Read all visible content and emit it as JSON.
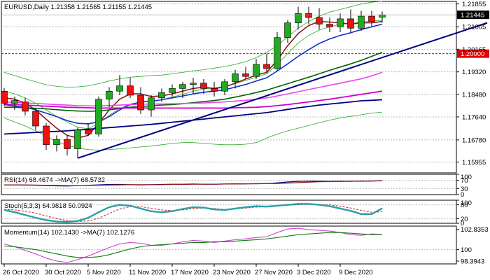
{
  "chart_data": {
    "type": "candlestick",
    "symbol_header": "EURUSD,Daily  1.21358 1.21565 1.21155 1.21445",
    "current_price_label": "1.21445",
    "reference_level": {
      "value": 1.2,
      "label": "1.20000",
      "color": "#dd0000"
    },
    "price_axis": {
      "ylim": [
        1.1555,
        1.2195
      ],
      "ticks": [
        "1.21855",
        "1.21005",
        "1.20165",
        "1.19320",
        "1.18480",
        "1.17640",
        "1.16780",
        "1.15955"
      ]
    },
    "x_labels": [
      {
        "label": "26 Oct 2020",
        "index": 0
      },
      {
        "label": "30 Oct 2020",
        "index": 4
      },
      {
        "label": "5 Nov 2020",
        "index": 8
      },
      {
        "label": "11 Nov 2020",
        "index": 12
      },
      {
        "label": "17 Nov 2020",
        "index": 16
      },
      {
        "label": "23 Nov 2020",
        "index": 20
      },
      {
        "label": "27 Nov 2020",
        "index": 24
      },
      {
        "label": "3 Dec 2020",
        "index": 28
      },
      {
        "label": "9 Dec 2020",
        "index": 32
      }
    ],
    "colors": {
      "up": "#22aa22",
      "down": "#ee1111"
    },
    "candles": [
      [
        1.186,
        1.1872,
        1.1805,
        1.1815
      ],
      [
        1.1815,
        1.184,
        1.179,
        1.1825
      ],
      [
        1.182,
        1.1835,
        1.177,
        1.1785
      ],
      [
        1.1785,
        1.1795,
        1.1715,
        1.173
      ],
      [
        1.173,
        1.174,
        1.164,
        1.166
      ],
      [
        1.166,
        1.1695,
        1.1635,
        1.168
      ],
      [
        1.168,
        1.1695,
        1.162,
        1.1645
      ],
      [
        1.1645,
        1.1725,
        1.161,
        1.1715
      ],
      [
        1.1715,
        1.174,
        1.1695,
        1.17
      ],
      [
        1.17,
        1.184,
        1.169,
        1.183
      ],
      [
        1.183,
        1.1875,
        1.18,
        1.186
      ],
      [
        1.186,
        1.192,
        1.1845,
        1.188
      ],
      [
        1.188,
        1.191,
        1.1835,
        1.1845
      ],
      [
        1.1845,
        1.1875,
        1.1775,
        1.179
      ],
      [
        1.179,
        1.1845,
        1.1765,
        1.1835
      ],
      [
        1.1835,
        1.187,
        1.182,
        1.1855
      ],
      [
        1.1855,
        1.1885,
        1.184,
        1.187
      ],
      [
        1.187,
        1.1895,
        1.1835,
        1.1885
      ],
      [
        1.1885,
        1.191,
        1.185,
        1.189
      ],
      [
        1.189,
        1.1905,
        1.185,
        1.187
      ],
      [
        1.187,
        1.1895,
        1.184,
        1.186
      ],
      [
        1.186,
        1.1905,
        1.1845,
        1.1895
      ],
      [
        1.1895,
        1.194,
        1.187,
        1.1925
      ],
      [
        1.1925,
        1.195,
        1.1905,
        1.1915
      ],
      [
        1.1915,
        1.198,
        1.1905,
        1.196
      ],
      [
        1.196,
        1.2,
        1.193,
        1.1945
      ],
      [
        1.1945,
        1.208,
        1.1935,
        1.206
      ],
      [
        1.206,
        1.2125,
        1.204,
        1.2115
      ],
      [
        1.2115,
        1.2175,
        1.209,
        1.215
      ],
      [
        1.215,
        1.2175,
        1.211,
        1.2135
      ],
      [
        1.2135,
        1.217,
        1.209,
        1.211
      ],
      [
        1.211,
        1.2135,
        1.208,
        1.21
      ],
      [
        1.21,
        1.215,
        1.208,
        1.213
      ],
      [
        1.213,
        1.2165,
        1.208,
        1.2095
      ],
      [
        1.2095,
        1.216,
        1.2085,
        1.214
      ],
      [
        1.214,
        1.216,
        1.21,
        1.212
      ],
      [
        1.2136,
        1.2157,
        1.2116,
        1.2145
      ]
    ],
    "overlays": [
      {
        "color": "#22aa22",
        "width": 0.8,
        "values": [
          1.193,
          1.1918,
          1.1906,
          1.1895,
          1.1884,
          1.1878,
          1.1875,
          1.1876,
          1.188,
          1.1888,
          1.1898,
          1.1906,
          1.1912,
          1.1915,
          1.1918,
          1.192,
          1.1925,
          1.193,
          1.1936,
          1.194,
          1.1946,
          1.1952,
          1.196,
          1.197,
          1.1985,
          1.2005,
          1.203,
          1.2062,
          1.2095,
          1.212,
          1.214,
          1.2155,
          1.2165,
          1.2175,
          1.2185,
          1.2192,
          1.2195
        ]
      },
      {
        "color": "#22aa22",
        "width": 0.8,
        "values": [
          1.176,
          1.1745,
          1.173,
          1.1712,
          1.1692,
          1.1672,
          1.1658,
          1.1648,
          1.1642,
          1.164,
          1.1642,
          1.1645,
          1.1648,
          1.1652,
          1.1655,
          1.166,
          1.1665,
          1.1668,
          1.1668,
          1.1665,
          1.1662,
          1.166,
          1.166,
          1.1662,
          1.1668,
          1.1685,
          1.17,
          1.1712,
          1.1722,
          1.1732,
          1.1742,
          1.1752,
          1.176,
          1.1766,
          1.1772,
          1.1778,
          1.1782
        ]
      },
      {
        "color": "#22aa22",
        "width": 0.8,
        "values": [
          1.186,
          1.185,
          1.1835,
          1.1815,
          1.179,
          1.1765,
          1.1745,
          1.1725,
          1.172,
          1.174,
          1.177,
          1.1795,
          1.1812,
          1.182,
          1.1822,
          1.1828,
          1.1838,
          1.1848,
          1.186,
          1.1868,
          1.1872,
          1.1878,
          1.1888,
          1.19,
          1.1912,
          1.1925,
          1.196,
          1.2,
          1.204,
          1.2068,
          1.2088,
          1.21,
          1.211,
          1.2112,
          1.2118,
          1.2122,
          1.2125
        ]
      },
      {
        "color": "#8b1a1a",
        "width": 1.6,
        "values": [
          1.1835,
          1.183,
          1.1815,
          1.179,
          1.1755,
          1.1722,
          1.1695,
          1.1685,
          1.1695,
          1.174,
          1.179,
          1.183,
          1.185,
          1.185,
          1.184,
          1.1842,
          1.185,
          1.186,
          1.187,
          1.1875,
          1.187,
          1.1875,
          1.189,
          1.1905,
          1.192,
          1.193,
          1.1975,
          1.203,
          1.2075,
          1.2105,
          1.212,
          1.2118,
          1.2115,
          1.211,
          1.2115,
          1.2115,
          1.212
        ]
      },
      {
        "color": "#1133cc",
        "width": 1.6,
        "values": [
          1.181,
          1.1805,
          1.18,
          1.179,
          1.1778,
          1.1765,
          1.175,
          1.174,
          1.1738,
          1.1745,
          1.1765,
          1.179,
          1.181,
          1.182,
          1.1822,
          1.1828,
          1.1835,
          1.1842,
          1.185,
          1.1856,
          1.186,
          1.1865,
          1.1875,
          1.1885,
          1.1898,
          1.191,
          1.1935,
          1.1962,
          1.199,
          1.2015,
          1.2038,
          1.2055,
          1.2068,
          1.2078,
          1.209,
          1.21,
          1.211
        ]
      },
      {
        "color": "#006600",
        "width": 1.6,
        "values": [
          1.18,
          1.18,
          1.1798,
          1.1796,
          1.1794,
          1.1791,
          1.1788,
          1.1786,
          1.1785,
          1.1786,
          1.179,
          1.1795,
          1.18,
          1.1803,
          1.1805,
          1.1808,
          1.181,
          1.1813,
          1.1817,
          1.1821,
          1.1825,
          1.183,
          1.1838,
          1.1846,
          1.1855,
          1.1864,
          1.1876,
          1.1888,
          1.19,
          1.1912,
          1.1925,
          1.1938,
          1.195,
          1.1962,
          1.1975,
          1.199,
          1.2005
        ]
      },
      {
        "color": "#ee44ee",
        "width": 1.6,
        "values": [
          1.182,
          1.1818,
          1.1816,
          1.1814,
          1.1812,
          1.181,
          1.1808,
          1.1806,
          1.1805,
          1.1805,
          1.1806,
          1.1808,
          1.181,
          1.1811,
          1.1812,
          1.1812,
          1.1813,
          1.1814,
          1.1815,
          1.1816,
          1.1818,
          1.182,
          1.1823,
          1.1826,
          1.183,
          1.1835,
          1.1842,
          1.185,
          1.1858,
          1.1866,
          1.1874,
          1.1882,
          1.189,
          1.1898,
          1.1906,
          1.1917,
          1.193
        ]
      },
      {
        "color": "#cc00cc",
        "width": 1.8,
        "values": [
          1.1812,
          1.181,
          1.1808,
          1.1806,
          1.1804,
          1.1802,
          1.18,
          1.1799,
          1.1798,
          1.1797,
          1.1797,
          1.1797,
          1.1797,
          1.1797,
          1.1797,
          1.1797,
          1.1797,
          1.1797,
          1.1797,
          1.1797,
          1.1797,
          1.1797,
          1.1798,
          1.1799,
          1.18,
          1.1802,
          1.1806,
          1.181,
          1.1815,
          1.182,
          1.1825,
          1.183,
          1.1836,
          1.1842,
          1.1848,
          1.1854,
          1.186
        ]
      },
      {
        "color": "#00007f",
        "width": 1.8,
        "values": [
          1.17,
          1.1702,
          1.1704,
          1.1706,
          1.1708,
          1.171,
          1.1712,
          1.1715,
          1.1718,
          1.1721,
          1.1724,
          1.1727,
          1.173,
          1.1733,
          1.1736,
          1.174,
          1.1744,
          1.1748,
          1.1752,
          1.1756,
          1.176,
          1.1764,
          1.1768,
          1.1772,
          1.1776,
          1.178,
          1.1786,
          1.1792,
          1.1798,
          1.1803,
          1.1808,
          1.1812,
          1.1816,
          1.182,
          1.1824,
          1.1826,
          1.1828
        ]
      }
    ],
    "trendline": {
      "color": "#00007f",
      "width": 2,
      "from": {
        "index": 7,
        "value": 1.161
      },
      "to": {
        "index": 46,
        "value": 1.2115
      }
    },
    "panes": [
      {
        "id": "rsi",
        "label": "RSI(14) 68.4674  ->MA(7) 68.5732",
        "ylim": [
          0,
          100
        ],
        "ticks": [
          {
            "label": "100",
            "value": 100
          },
          {
            "label": "70",
            "value": 70
          },
          {
            "label": "30",
            "value": 30
          },
          {
            "label": "0",
            "value": 0
          }
        ],
        "grid_values": [
          70,
          30
        ],
        "lines": [
          {
            "color": "#00007f",
            "width": 1.2,
            "values": [
              48,
              48,
              47,
              46,
              44,
              43,
              42,
              44,
              46,
              48,
              50,
              50,
              49,
              48,
              49,
              50,
              51,
              51,
              52,
              51,
              51,
              52,
              53,
              53,
              54,
              54,
              58,
              62,
              65,
              66,
              66,
              65,
              66,
              65,
              67,
              67,
              68.4674
            ]
          },
          {
            "color": "#8b1a1a",
            "width": 1.2,
            "values": [
              48,
              48,
              47.5,
              47,
              46,
              45,
              44,
              44,
              45,
              46,
              47,
              48,
              49,
              49,
              49,
              49,
              50,
              50,
              51,
              51,
              51,
              52,
              52,
              53,
              53,
              54,
              55,
              57,
              59,
              61,
              63,
              64,
              65,
              66,
              66,
              67,
              68.5732
            ]
          }
        ]
      },
      {
        "id": "stoch",
        "label": "Stoch(5,3,3) 64.9818  50.0924",
        "ylim": [
          0,
          100
        ],
        "ticks": [
          {
            "label": "100",
            "value": 100
          },
          {
            "label": "80",
            "value": 80
          },
          {
            "label": "20",
            "value": 20
          },
          {
            "label": "0",
            "value": 0
          }
        ],
        "grid_values": [
          80,
          20
        ],
        "lines": [
          {
            "color": "#cc2222",
            "width": 1,
            "dashed": true,
            "values": [
              60,
              58,
              52,
              44,
              32,
              20,
              12,
              8,
              10,
              22,
              42,
              62,
              72,
              72,
              65,
              58,
              55,
              58,
              64,
              66,
              64,
              60,
              62,
              66,
              70,
              72,
              75,
              78,
              80,
              82,
              82,
              80,
              74,
              66,
              56,
              48,
              50.0924
            ]
          },
          {
            "color": "#2aa0a8",
            "width": 2.4,
            "values": [
              58,
              48,
              36,
              24,
              14,
              8,
              6,
              10,
              24,
              48,
              70,
              80,
              76,
              64,
              52,
              48,
              52,
              62,
              70,
              68,
              60,
              58,
              64,
              70,
              74,
              72,
              76,
              80,
              84,
              84,
              80,
              74,
              64,
              54,
              40,
              40,
              64.9818
            ]
          }
        ]
      },
      {
        "id": "momentum",
        "label": "Momentum(14) 102.1430  ->MA(7) 102.1276",
        "ylim": [
          98.0,
          103.3
        ],
        "ticks": [
          {
            "label": "102.8353",
            "value": 102.8353
          },
          {
            "label": "100",
            "value": 100
          },
          {
            "label": "98.3943",
            "value": 98.3943
          }
        ],
        "grid_values": [
          100
        ],
        "lines": [
          {
            "color": "#cc44cc",
            "width": 1.1,
            "values": [
              100.8,
              100.4,
              99.9,
              99.4,
              98.8,
              98.4,
              98.2,
              98.6,
              99.1,
              99.7,
              100.3,
              100.8,
              101.0,
              100.9,
              100.6,
              100.6,
              100.8,
              101.1,
              101.3,
              101.2,
              101.0,
              101.2,
              101.4,
              101.5,
              101.7,
              101.8,
              102.4,
              102.9,
              103.0,
              102.8,
              102.7,
              102.6,
              102.4,
              102.1,
              102.0,
              102.2,
              102.143
            ]
          },
          {
            "color": "#117a11",
            "width": 1.1,
            "values": [
              100.5,
              100.4,
              100.2,
              100.0,
              99.7,
              99.4,
              99.1,
              98.9,
              98.9,
              99.0,
              99.3,
              99.7,
              100.1,
              100.4,
              100.6,
              100.7,
              100.8,
              100.9,
              101.0,
              101.0,
              101.1,
              101.1,
              101.2,
              101.3,
              101.4,
              101.5,
              101.7,
              101.9,
              102.1,
              102.2,
              102.3,
              102.4,
              102.4,
              102.3,
              102.2,
              102.1,
              102.1276
            ]
          }
        ]
      }
    ]
  }
}
